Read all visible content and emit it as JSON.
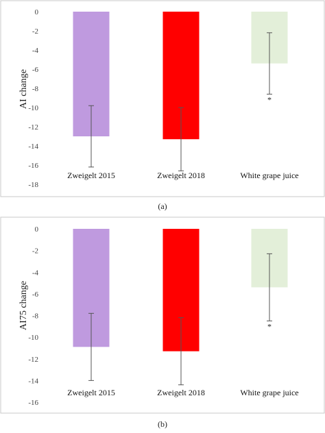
{
  "chart_data": [
    {
      "type": "bar",
      "panel_label": "(a)",
      "ylabel": "AI change",
      "ylim": [
        -18,
        0
      ],
      "yticks": [
        0,
        -2,
        -4,
        -6,
        -8,
        -10,
        -12,
        -14,
        -16,
        -18
      ],
      "ytick_labels": [
        "0",
        "-2",
        "-4",
        "-6",
        "-8",
        "-10",
        "-12",
        "-14",
        "-16",
        "-18"
      ],
      "categories": [
        "Zweigelt 2015",
        "Zweigelt 2018",
        "White grape juice"
      ],
      "values": [
        -13.0,
        -13.3,
        -5.4
      ],
      "error": [
        3.2,
        3.3,
        3.2
      ],
      "colors": [
        "#bf9adf",
        "#ff0000",
        "#e3efd9"
      ],
      "annotations": [
        "",
        "",
        "*"
      ],
      "grid": false
    },
    {
      "type": "bar",
      "panel_label": "(b)",
      "ylabel": "AI75 change",
      "ylim": [
        -16,
        0
      ],
      "yticks": [
        0,
        -2,
        -4,
        -6,
        -8,
        -10,
        -12,
        -14,
        -16
      ],
      "ytick_labels": [
        "0",
        "-2",
        "-4",
        "-6",
        "-8",
        "-10",
        "-12",
        "-14",
        "-16"
      ],
      "categories": [
        "Zweigelt 2015",
        "Zweigelt 2018",
        "White grape juice"
      ],
      "values": [
        -10.9,
        -11.3,
        -5.4
      ],
      "error": [
        3.1,
        3.1,
        3.1
      ],
      "colors": [
        "#bf9adf",
        "#ff0000",
        "#e3efd9"
      ],
      "annotations": [
        "",
        "",
        "*"
      ],
      "grid": false
    }
  ]
}
